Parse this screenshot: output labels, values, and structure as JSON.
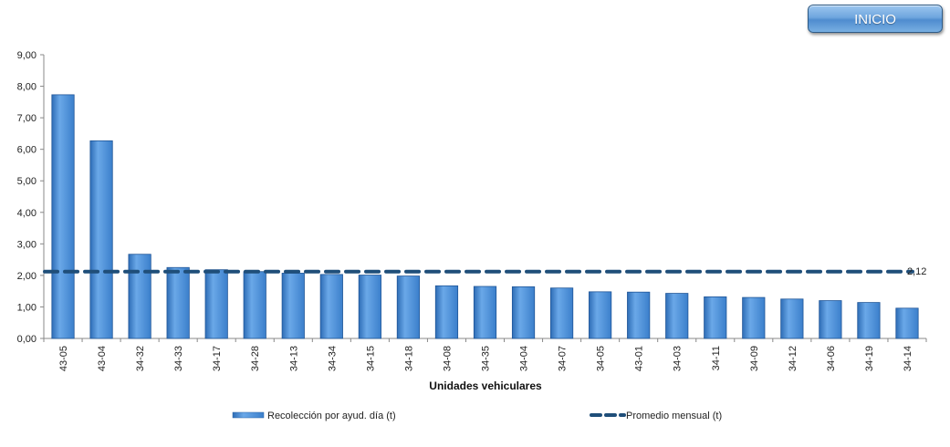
{
  "button": {
    "label": "INICIO"
  },
  "colors": {
    "bar": "#4a8fd6",
    "bar_dark": "#2a63a6",
    "line": "#1f4e79"
  },
  "chart_data": {
    "type": "bar",
    "title": "",
    "xlabel": "Unidades vehiculares",
    "ylabel": "",
    "ylim": [
      0,
      9
    ],
    "yticks": [
      "0,00",
      "1,00",
      "2,00",
      "3,00",
      "4,00",
      "5,00",
      "6,00",
      "7,00",
      "8,00",
      "9,00"
    ],
    "categories": [
      "43-05",
      "43-04",
      "34-32",
      "34-33",
      "34-17",
      "34-28",
      "34-13",
      "34-34",
      "34-15",
      "34-18",
      "34-08",
      "34-35",
      "34-04",
      "34-07",
      "34-05",
      "43-01",
      "34-03",
      "34-11",
      "34-09",
      "34-12",
      "34-06",
      "34-19",
      "34-14"
    ],
    "series": [
      {
        "name": "Recolección por ayud. día (t)",
        "type": "bar",
        "values": [
          7.73,
          6.27,
          2.67,
          2.25,
          2.18,
          2.12,
          2.07,
          2.03,
          2.01,
          1.98,
          1.67,
          1.65,
          1.64,
          1.6,
          1.48,
          1.47,
          1.43,
          1.32,
          1.3,
          1.25,
          1.2,
          1.14,
          0.96
        ]
      },
      {
        "name": "Promedio mensual (t)",
        "type": "line-dashed",
        "constant": 2.12
      }
    ],
    "annotations": [
      "2,12"
    ],
    "legend": "bottom",
    "grid": false
  }
}
